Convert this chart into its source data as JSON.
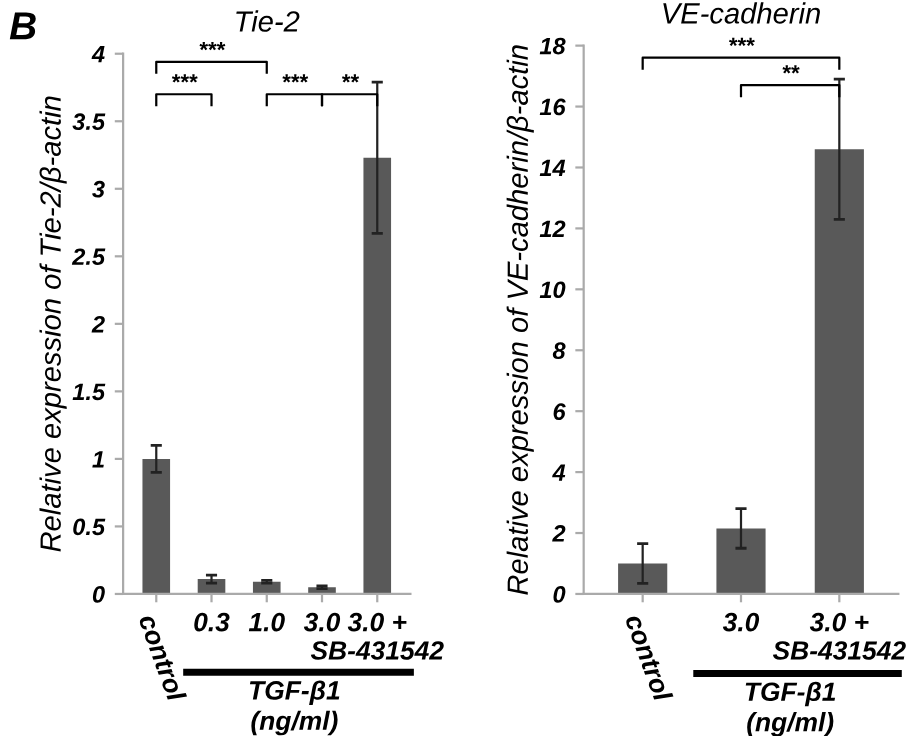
{
  "chart_data": [
    {
      "type": "bar",
      "title": "Tie-2",
      "ylabel": "Relative expression of Tie-2/β-actin",
      "xlabel": "TGF-β1\n(ng/ml)",
      "categories": [
        "control",
        "0.3",
        "1.0",
        "3.0",
        "3.0 +\nSB-431542"
      ],
      "values": [
        1.0,
        0.11,
        0.09,
        0.05,
        3.23
      ],
      "errors": [
        0.1,
        0.03,
        0.01,
        0.01,
        0.56
      ],
      "color": "#595959",
      "ylim": [
        0,
        4
      ],
      "yticks": [
        0,
        0.5,
        1,
        1.5,
        2,
        2.5,
        3,
        3.5,
        4
      ],
      "grid": false,
      "annotations": [
        "B",
        "***",
        "***",
        "***",
        "**"
      ]
    },
    {
      "type": "bar",
      "title": "VE-cadherin",
      "ylabel": "Relative expression of VE-cadherin/β-actin",
      "xlabel": "TGF-β1\n(ng/ml)",
      "categories": [
        "control",
        "3.0",
        "3.0 +\nSB-431542"
      ],
      "values": [
        1.0,
        2.15,
        14.6
      ],
      "errors": [
        0.65,
        0.65,
        2.3
      ],
      "color": "#595959",
      "ylim": [
        0,
        18
      ],
      "yticks": [
        0,
        2,
        4,
        6,
        8,
        10,
        12,
        14,
        16,
        18
      ],
      "grid": false,
      "annotations": [
        "***",
        "**"
      ]
    }
  ]
}
